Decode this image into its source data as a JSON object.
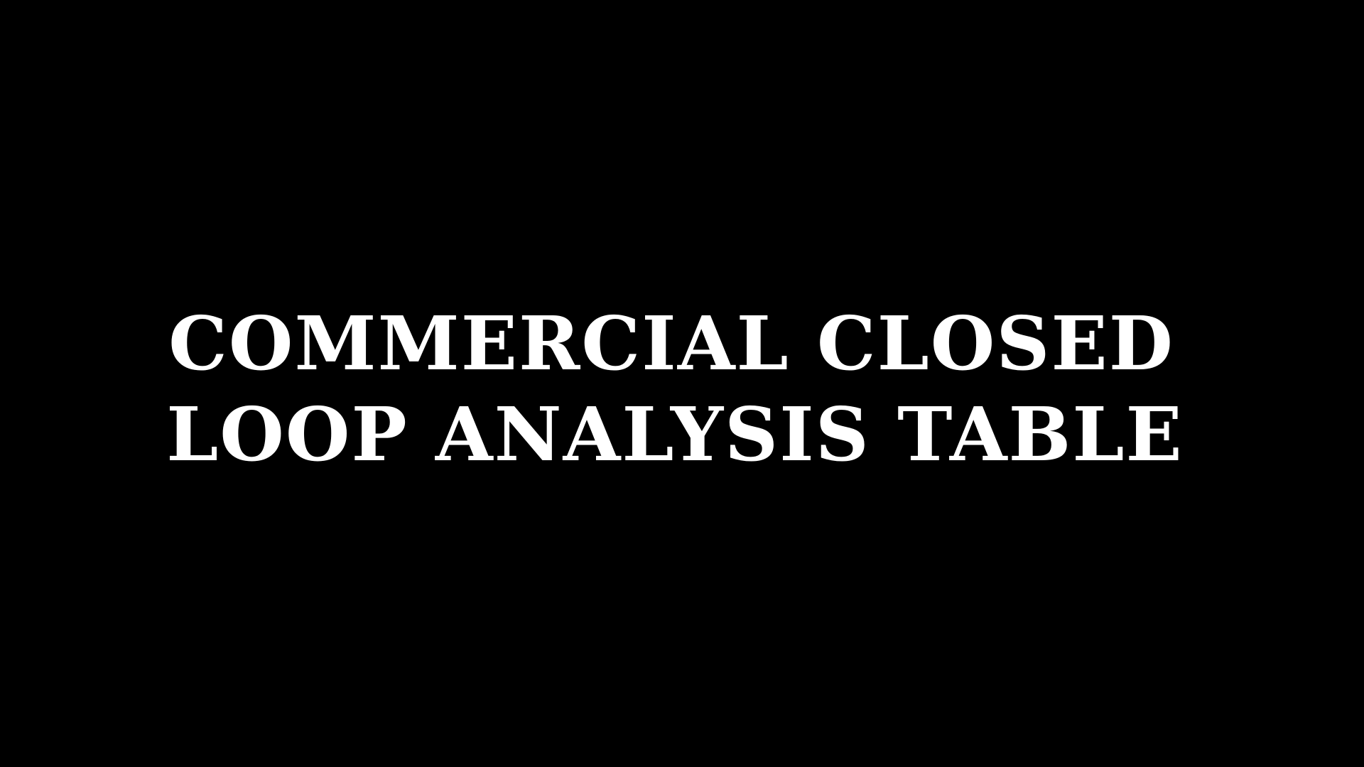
{
  "slide": {
    "title_lines": [
      "COMMERCIAL CLOSED",
      "LOOP ANALYSIS TABLE"
    ],
    "colors": {
      "background": "#000000",
      "text": "#ffffff"
    }
  }
}
